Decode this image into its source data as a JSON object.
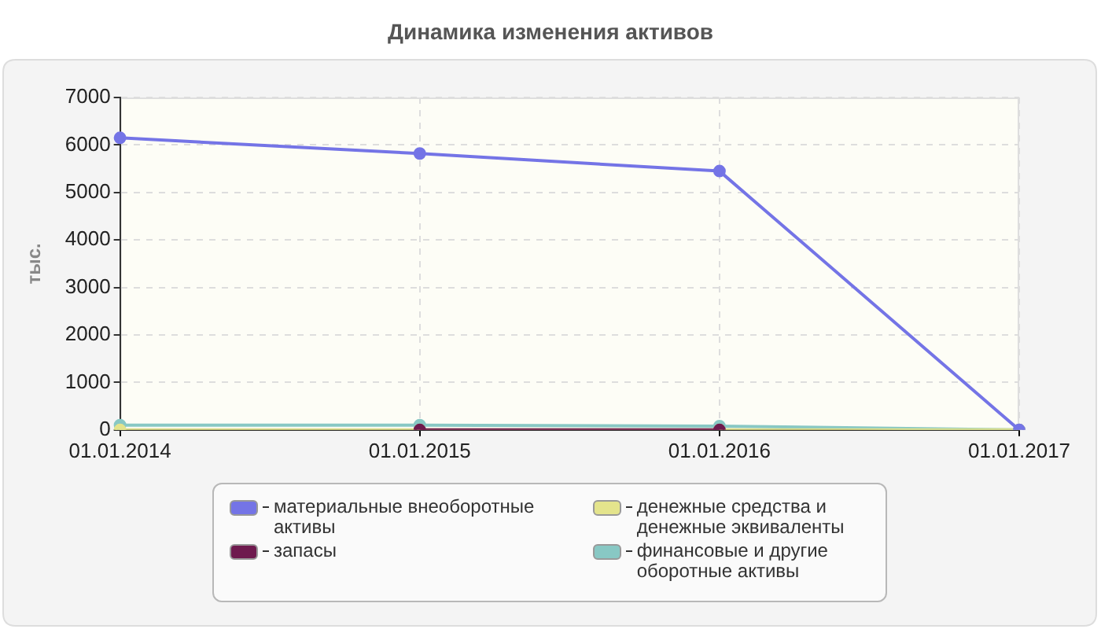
{
  "chart_data": {
    "type": "line",
    "title": "Динамика изменения активов",
    "ylabel": "тыс.",
    "categories": [
      "01.01.2014",
      "01.01.2015",
      "01.01.2016",
      "01.01.2017"
    ],
    "series": [
      {
        "name": "материальные внеоборотные активы",
        "color": "#7474e6",
        "values": [
          6150,
          5820,
          5450,
          0
        ]
      },
      {
        "name": "запасы",
        "color": "#6e1a4e",
        "values": [
          null,
          0,
          0,
          null
        ]
      },
      {
        "name": "денежные средства и денежные эквиваленты",
        "color": "#e4e48c",
        "values": [
          0,
          0,
          0,
          0
        ]
      },
      {
        "name": "финансовые и другие оборотные активы",
        "color": "#88c8c4",
        "values": [
          100,
          100,
          80,
          0
        ]
      }
    ],
    "ylim": [
      0,
      7000
    ],
    "yticks": [
      0,
      1000,
      2000,
      3000,
      4000,
      5000,
      6000,
      7000
    ],
    "grid": true,
    "legend": "bottom",
    "marker": "circle"
  }
}
